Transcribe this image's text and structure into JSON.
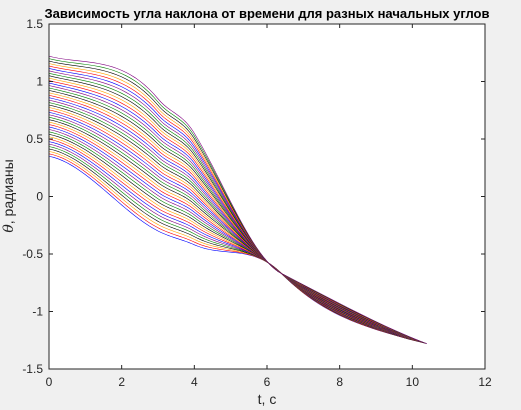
{
  "chart_data": {
    "type": "line",
    "title": "Зависимость угла наклона от времени для разных начальных углов",
    "xlabel": "t, c",
    "ylabel_symbol": "θ",
    "ylabel_rest": ", радианы",
    "xlim": [
      0,
      12
    ],
    "ylim": [
      -1.5,
      1.5
    ],
    "xticks": [
      0,
      2,
      4,
      6,
      8,
      10,
      12
    ],
    "yticks": [
      -1.5,
      -1,
      -0.5,
      0,
      0.5,
      1,
      1.5
    ],
    "xtick_labels": [
      "0",
      "2",
      "4",
      "6",
      "8",
      "10",
      "12"
    ],
    "ytick_labels": [
      "-1.5",
      "-1",
      "-0.5",
      "0",
      "0.5",
      "1",
      "1.5"
    ],
    "grid": false,
    "colors": [
      "#0000ff",
      "#ff0000",
      "#ffa500",
      "#000000",
      "#008000",
      "#800080"
    ],
    "series_family": {
      "count": 42,
      "initial_theta_range": [
        0.35,
        1.22
      ],
      "end_time_range": [
        9.9,
        10.4
      ],
      "end_theta_range": [
        -1.24,
        -1.28
      ],
      "crossing_point": [
        6.4,
        -0.67
      ],
      "midpoint_theta_at_t3": [
        -0.3,
        0.85
      ]
    }
  },
  "axes_background": "#ffffff",
  "figure_background": "#f0f0f0"
}
